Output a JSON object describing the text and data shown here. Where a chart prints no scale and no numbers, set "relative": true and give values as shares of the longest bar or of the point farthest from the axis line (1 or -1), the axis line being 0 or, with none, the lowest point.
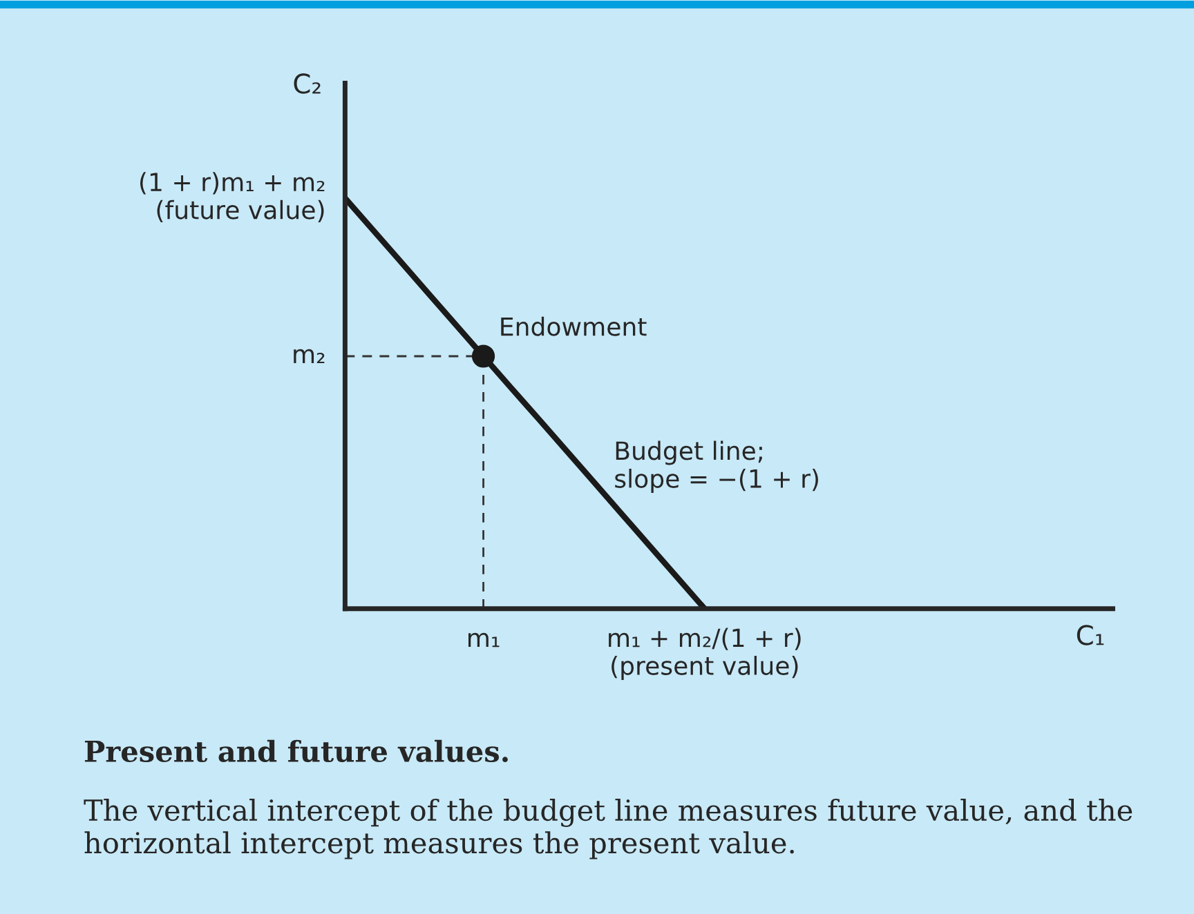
{
  "chart_data": {
    "type": "line",
    "title": "Present and future values.",
    "relative": true,
    "xlabel": "C₁",
    "ylabel": "C₂",
    "categories": [
      null,
      null,
      null,
      null,
      null,
      "m₁",
      null,
      null,
      null,
      null,
      null,
      null,
      null,
      "m₁ + m₂/(1 + r)\n(present value)",
      null,
      null,
      null,
      null,
      null,
      null,
      null,
      null,
      null,
      null,
      null,
      null,
      null,
      null
    ],
    "series": [
      {
        "color": "#1a1a1a",
        "values": [
          1,
          0.923,
          0.846,
          0.769,
          0.692,
          0.615,
          0.538,
          0.462,
          0.385,
          0.308,
          0.231,
          0.154,
          0.077,
          0,
          null,
          null,
          null,
          null,
          null,
          null,
          null,
          null,
          null,
          null,
          null,
          null,
          null,
          null
        ],
        "line_style": "solid"
      },
      {
        "color": "#333333",
        "values": [
          0.615,
          0.615,
          0.615,
          0.615,
          0.615,
          0.615,
          null,
          null,
          null,
          null,
          null,
          null,
          null,
          null,
          null,
          null,
          null,
          null,
          null,
          null,
          null,
          null,
          null,
          null,
          null,
          null,
          null,
          null
        ],
        "line_style": "dashed"
      },
      {
        "type": "scatter",
        "color": "#1a1a1a",
        "values": [
          null,
          null,
          null,
          null,
          null,
          0.615,
          null,
          null,
          null,
          null,
          null,
          null,
          null,
          null,
          null,
          null,
          null,
          null,
          null,
          null,
          null,
          null,
          null,
          null,
          null,
          null,
          null,
          null
        ],
        "marker": "circle"
      }
    ],
    "annotations": [
      "m₂",
      "(1 + r)m₁ + m₂\n(future value)",
      "Endowment",
      "Budget line;\nslope = −(1 + r)",
      "The vertical intercept of the budget line measures future value, and the horizontal intercept measures the present value."
    ]
  }
}
